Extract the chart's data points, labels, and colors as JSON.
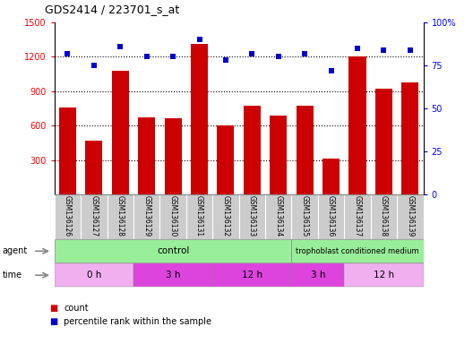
{
  "title": "GDS2414 / 223701_s_at",
  "samples": [
    "GSM136126",
    "GSM136127",
    "GSM136128",
    "GSM136129",
    "GSM136130",
    "GSM136131",
    "GSM136132",
    "GSM136133",
    "GSM136134",
    "GSM136135",
    "GSM136136",
    "GSM136137",
    "GSM136138",
    "GSM136139"
  ],
  "counts": [
    760,
    470,
    1080,
    670,
    665,
    1310,
    600,
    775,
    685,
    775,
    310,
    1205,
    925,
    975
  ],
  "percentile_ranks": [
    82,
    75,
    86,
    80,
    80,
    90,
    78,
    82,
    80,
    82,
    72,
    85,
    84,
    84
  ],
  "ylim_left": [
    0,
    1500
  ],
  "ylim_right": [
    0,
    100
  ],
  "yticks_left": [
    300,
    600,
    900,
    1200,
    1500
  ],
  "yticks_right": [
    0,
    25,
    50,
    75,
    100
  ],
  "bar_color": "#cc0000",
  "dot_color": "#0000cc",
  "tick_bg_color": "#cccccc",
  "agent_color": "#99ee99",
  "time_color_light": "#ee88ee",
  "time_color_dark": "#cc44cc",
  "control_label": "control",
  "tcm_label": "trophoblast conditioned medium",
  "time_labels": [
    "0 h",
    "3 h",
    "12 h",
    "3 h",
    "12 h"
  ],
  "time_starts": [
    0,
    3,
    6,
    9,
    11
  ],
  "time_ends": [
    3,
    6,
    9,
    11,
    14
  ],
  "legend_count": "count",
  "legend_pct": "percentile rank within the sample",
  "agent_label": "agent",
  "time_label": "time"
}
